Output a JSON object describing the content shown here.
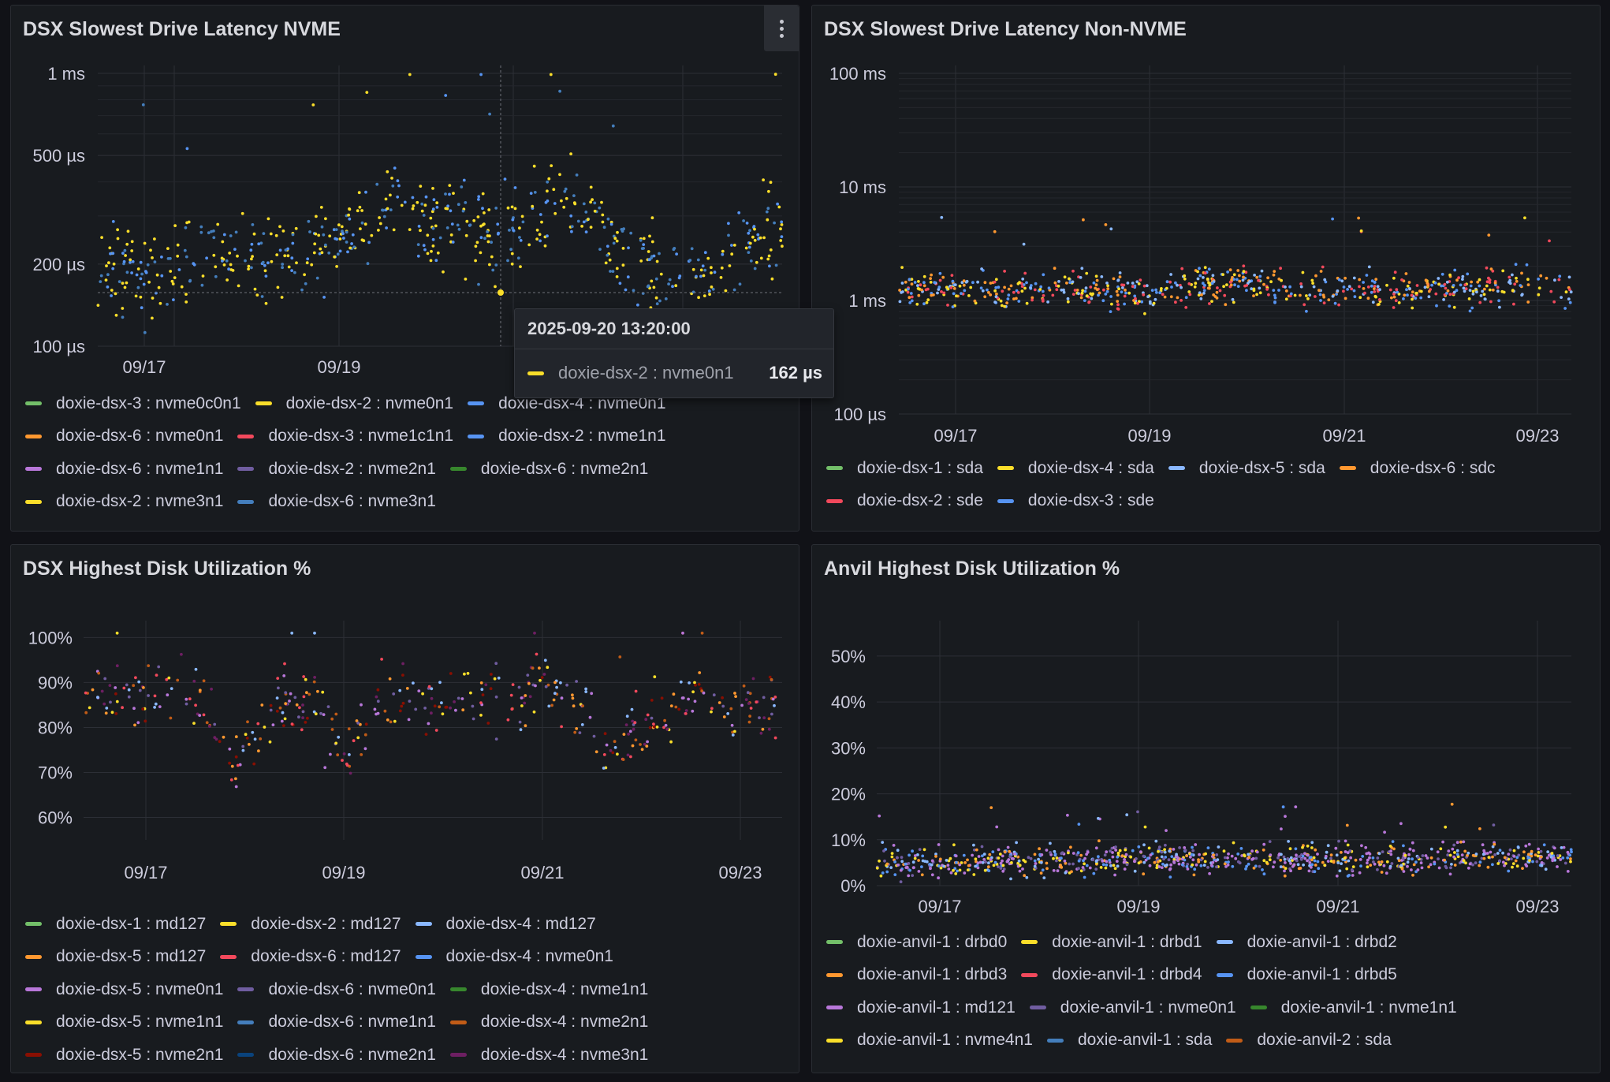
{
  "panels": [
    {
      "title": "DSX Slowest Drive Latency NVME",
      "legend": [
        {
          "name": "doxie-dsx-3 : nvme0c0n1",
          "color": "#73bf69"
        },
        {
          "name": "doxie-dsx-2 : nvme0n1",
          "color": "#fade2a"
        },
        {
          "name": "doxie-dsx-4 : nvme0n1",
          "color": "#5794f2"
        },
        {
          "name": "doxie-dsx-6 : nvme0n1",
          "color": "#ff9830"
        },
        {
          "name": "doxie-dsx-3 : nvme1c1n1",
          "color": "#f2495c"
        },
        {
          "name": "doxie-dsx-2 : nvme1n1",
          "color": "#5794f2"
        },
        {
          "name": "doxie-dsx-6 : nvme1n1",
          "color": "#b877d9"
        },
        {
          "name": "doxie-dsx-2 : nvme2n1",
          "color": "#705da0"
        },
        {
          "name": "doxie-dsx-6 : nvme2n1",
          "color": "#37872d"
        },
        {
          "name": "doxie-dsx-2 : nvme3n1",
          "color": "#fade2a"
        },
        {
          "name": "doxie-dsx-6 : nvme3n1",
          "color": "#447ebc"
        }
      ],
      "tooltip": {
        "time": "2025-09-20 13:20:00",
        "series": "doxie-dsx-2 : nvme0n1",
        "value": "162 µs",
        "color": "#fade2a"
      }
    },
    {
      "title": "DSX Slowest Drive Latency Non-NVME",
      "legend": [
        {
          "name": "doxie-dsx-1 : sda",
          "color": "#73bf69"
        },
        {
          "name": "doxie-dsx-4 : sda",
          "color": "#fade2a"
        },
        {
          "name": "doxie-dsx-5 : sda",
          "color": "#8ab8ff"
        },
        {
          "name": "doxie-dsx-6 : sdc",
          "color": "#ff9830"
        },
        {
          "name": "doxie-dsx-2 : sde",
          "color": "#f2495c"
        },
        {
          "name": "doxie-dsx-3 : sde",
          "color": "#5794f2"
        }
      ]
    },
    {
      "title": "DSX Highest Disk Utilization %",
      "legend": [
        {
          "name": "doxie-dsx-1 : md127",
          "color": "#73bf69"
        },
        {
          "name": "doxie-dsx-2 : md127",
          "color": "#fade2a"
        },
        {
          "name": "doxie-dsx-4 : md127",
          "color": "#8ab8ff"
        },
        {
          "name": "doxie-dsx-5 : md127",
          "color": "#ff9830"
        },
        {
          "name": "doxie-dsx-6 : md127",
          "color": "#f2495c"
        },
        {
          "name": "doxie-dsx-4 : nvme0n1",
          "color": "#5794f2"
        },
        {
          "name": "doxie-dsx-5 : nvme0n1",
          "color": "#b877d9"
        },
        {
          "name": "doxie-dsx-6 : nvme0n1",
          "color": "#705da0"
        },
        {
          "name": "doxie-dsx-4 : nvme1n1",
          "color": "#37872d"
        },
        {
          "name": "doxie-dsx-5 : nvme1n1",
          "color": "#fade2a"
        },
        {
          "name": "doxie-dsx-6 : nvme1n1",
          "color": "#447ebc"
        },
        {
          "name": "doxie-dsx-4 : nvme2n1",
          "color": "#c15c17"
        },
        {
          "name": "doxie-dsx-5 : nvme2n1",
          "color": "#890f02"
        },
        {
          "name": "doxie-dsx-6 : nvme2n1",
          "color": "#0a437c"
        },
        {
          "name": "doxie-dsx-4 : nvme3n1",
          "color": "#6d1f62"
        }
      ]
    },
    {
      "title": "Anvil Highest Disk Utilization %",
      "legend": [
        {
          "name": "doxie-anvil-1 : drbd0",
          "color": "#73bf69"
        },
        {
          "name": "doxie-anvil-1 : drbd1",
          "color": "#fade2a"
        },
        {
          "name": "doxie-anvil-1 : drbd2",
          "color": "#8ab8ff"
        },
        {
          "name": "doxie-anvil-1 : drbd3",
          "color": "#ff9830"
        },
        {
          "name": "doxie-anvil-1 : drbd4",
          "color": "#f2495c"
        },
        {
          "name": "doxie-anvil-1 : drbd5",
          "color": "#5794f2"
        },
        {
          "name": "doxie-anvil-1 : md121",
          "color": "#b877d9"
        },
        {
          "name": "doxie-anvil-1 : nvme0n1",
          "color": "#705da0"
        },
        {
          "name": "doxie-anvil-1 : nvme1n1",
          "color": "#37872d"
        },
        {
          "name": "doxie-anvil-1 : nvme4n1",
          "color": "#fade2a"
        },
        {
          "name": "doxie-anvil-1 : sda",
          "color": "#447ebc"
        },
        {
          "name": "doxie-anvil-2 : sda",
          "color": "#c15c17"
        }
      ]
    }
  ],
  "chart_data": [
    {
      "type": "scatter",
      "title": "DSX Slowest Drive Latency NVME",
      "x_ticks": [
        "09/17",
        "09/19"
      ],
      "y_ticks": [
        "100 µs",
        "200 µs",
        "500 µs",
        "1 ms"
      ],
      "y_scale": "log",
      "ylim": [
        100,
        1000
      ],
      "y_unit": "µs",
      "x_range_days": [
        16.4,
        23.5
      ],
      "series_colors": [
        "#fade2a",
        "#5794f2",
        "#fade2a",
        "#447ebc"
      ],
      "profile": [
        [
          16.4,
          200
        ],
        [
          16.8,
          180
        ],
        [
          17.2,
          190
        ],
        [
          17.6,
          230
        ],
        [
          18.0,
          200
        ],
        [
          18.4,
          210
        ],
        [
          18.8,
          240
        ],
        [
          19.2,
          260
        ],
        [
          19.5,
          370
        ],
        [
          19.8,
          260
        ],
        [
          20.2,
          280
        ],
        [
          20.6,
          250
        ],
        [
          21.0,
          300
        ],
        [
          21.3,
          370
        ],
        [
          21.6,
          280
        ],
        [
          22.0,
          200
        ],
        [
          22.4,
          170
        ],
        [
          22.8,
          180
        ],
        [
          23.2,
          250
        ],
        [
          23.5,
          280
        ]
      ],
      "spread_factor": 1.35,
      "points": 620,
      "seed": 11
    },
    {
      "type": "scatter",
      "title": "DSX Slowest Drive Latency Non-NVME",
      "x_ticks": [
        "09/17",
        "09/19",
        "09/21",
        "09/23"
      ],
      "y_ticks": [
        "100 µs",
        "1 ms",
        "10 ms",
        "100 ms"
      ],
      "y_scale": "log",
      "ylim": [
        100,
        100000
      ],
      "y_unit": "µs",
      "x_range_days": [
        16.4,
        23.35
      ],
      "series_colors": [
        "#ff9830",
        "#f2495c",
        "#fade2a",
        "#5794f2",
        "#8ab8ff"
      ],
      "profile": [
        [
          16.4,
          1300
        ],
        [
          17.5,
          1200
        ],
        [
          18.5,
          1300
        ],
        [
          19.0,
          1100
        ],
        [
          19.5,
          1400
        ],
        [
          20.0,
          1500
        ],
        [
          20.5,
          1200
        ],
        [
          21.0,
          1300
        ],
        [
          21.5,
          1200
        ],
        [
          22.0,
          1250
        ],
        [
          22.5,
          1300
        ],
        [
          23.35,
          1300
        ]
      ],
      "spread_factor": 1.35,
      "points": 700,
      "seed": 23
    },
    {
      "type": "scatter",
      "title": "DSX Highest Disk Utilization %",
      "x_ticks": [
        "09/17",
        "09/19",
        "09/21",
        "09/23"
      ],
      "y_ticks": [
        "60%",
        "70%",
        "80%",
        "90%",
        "100%"
      ],
      "y_scale": "linear",
      "ylim": [
        55,
        102
      ],
      "y_unit": "%",
      "x_range_days": [
        16.4,
        23.35
      ],
      "series_colors": [
        "#705da0",
        "#b877d9",
        "#ff9830",
        "#f2495c",
        "#fade2a",
        "#8ab8ff",
        "#6d1f62",
        "#890f02",
        "#c15c17"
      ],
      "profile": [
        [
          16.4,
          88
        ],
        [
          16.8,
          87
        ],
        [
          17.2,
          90
        ],
        [
          17.6,
          86
        ],
        [
          17.9,
          72
        ],
        [
          18.3,
          85
        ],
        [
          18.7,
          84
        ],
        [
          19.0,
          73
        ],
        [
          19.4,
          88
        ],
        [
          19.8,
          86
        ],
        [
          20.2,
          89
        ],
        [
          20.6,
          85
        ],
        [
          21.0,
          90
        ],
        [
          21.3,
          84
        ],
        [
          21.7,
          75
        ],
        [
          22.1,
          82
        ],
        [
          22.5,
          87
        ],
        [
          22.9,
          85
        ],
        [
          23.35,
          86
        ]
      ],
      "spread_abs": 7,
      "points": 430,
      "seed": 37
    },
    {
      "type": "scatter",
      "title": "Anvil Highest Disk Utilization %",
      "x_ticks": [
        "09/17",
        "09/19",
        "09/21",
        "09/23"
      ],
      "y_ticks": [
        "0%",
        "10%",
        "20%",
        "30%",
        "40%",
        "50%"
      ],
      "y_scale": "linear",
      "ylim": [
        0,
        56
      ],
      "y_unit": "%",
      "x_range_days": [
        16.35,
        23.35
      ],
      "series_colors": [
        "#b877d9",
        "#b877d9",
        "#ff9830",
        "#fade2a",
        "#5794f2",
        "#8ab8ff",
        "#705da0"
      ],
      "profile": [
        [
          16.35,
          5
        ],
        [
          17.5,
          5.5
        ],
        [
          18.5,
          5
        ],
        [
          19.5,
          6
        ],
        [
          20.5,
          5.5
        ],
        [
          21.5,
          5.5
        ],
        [
          22.5,
          6
        ],
        [
          23.35,
          6
        ]
      ],
      "spread_abs": 3,
      "points": 900,
      "seed": 51
    }
  ]
}
